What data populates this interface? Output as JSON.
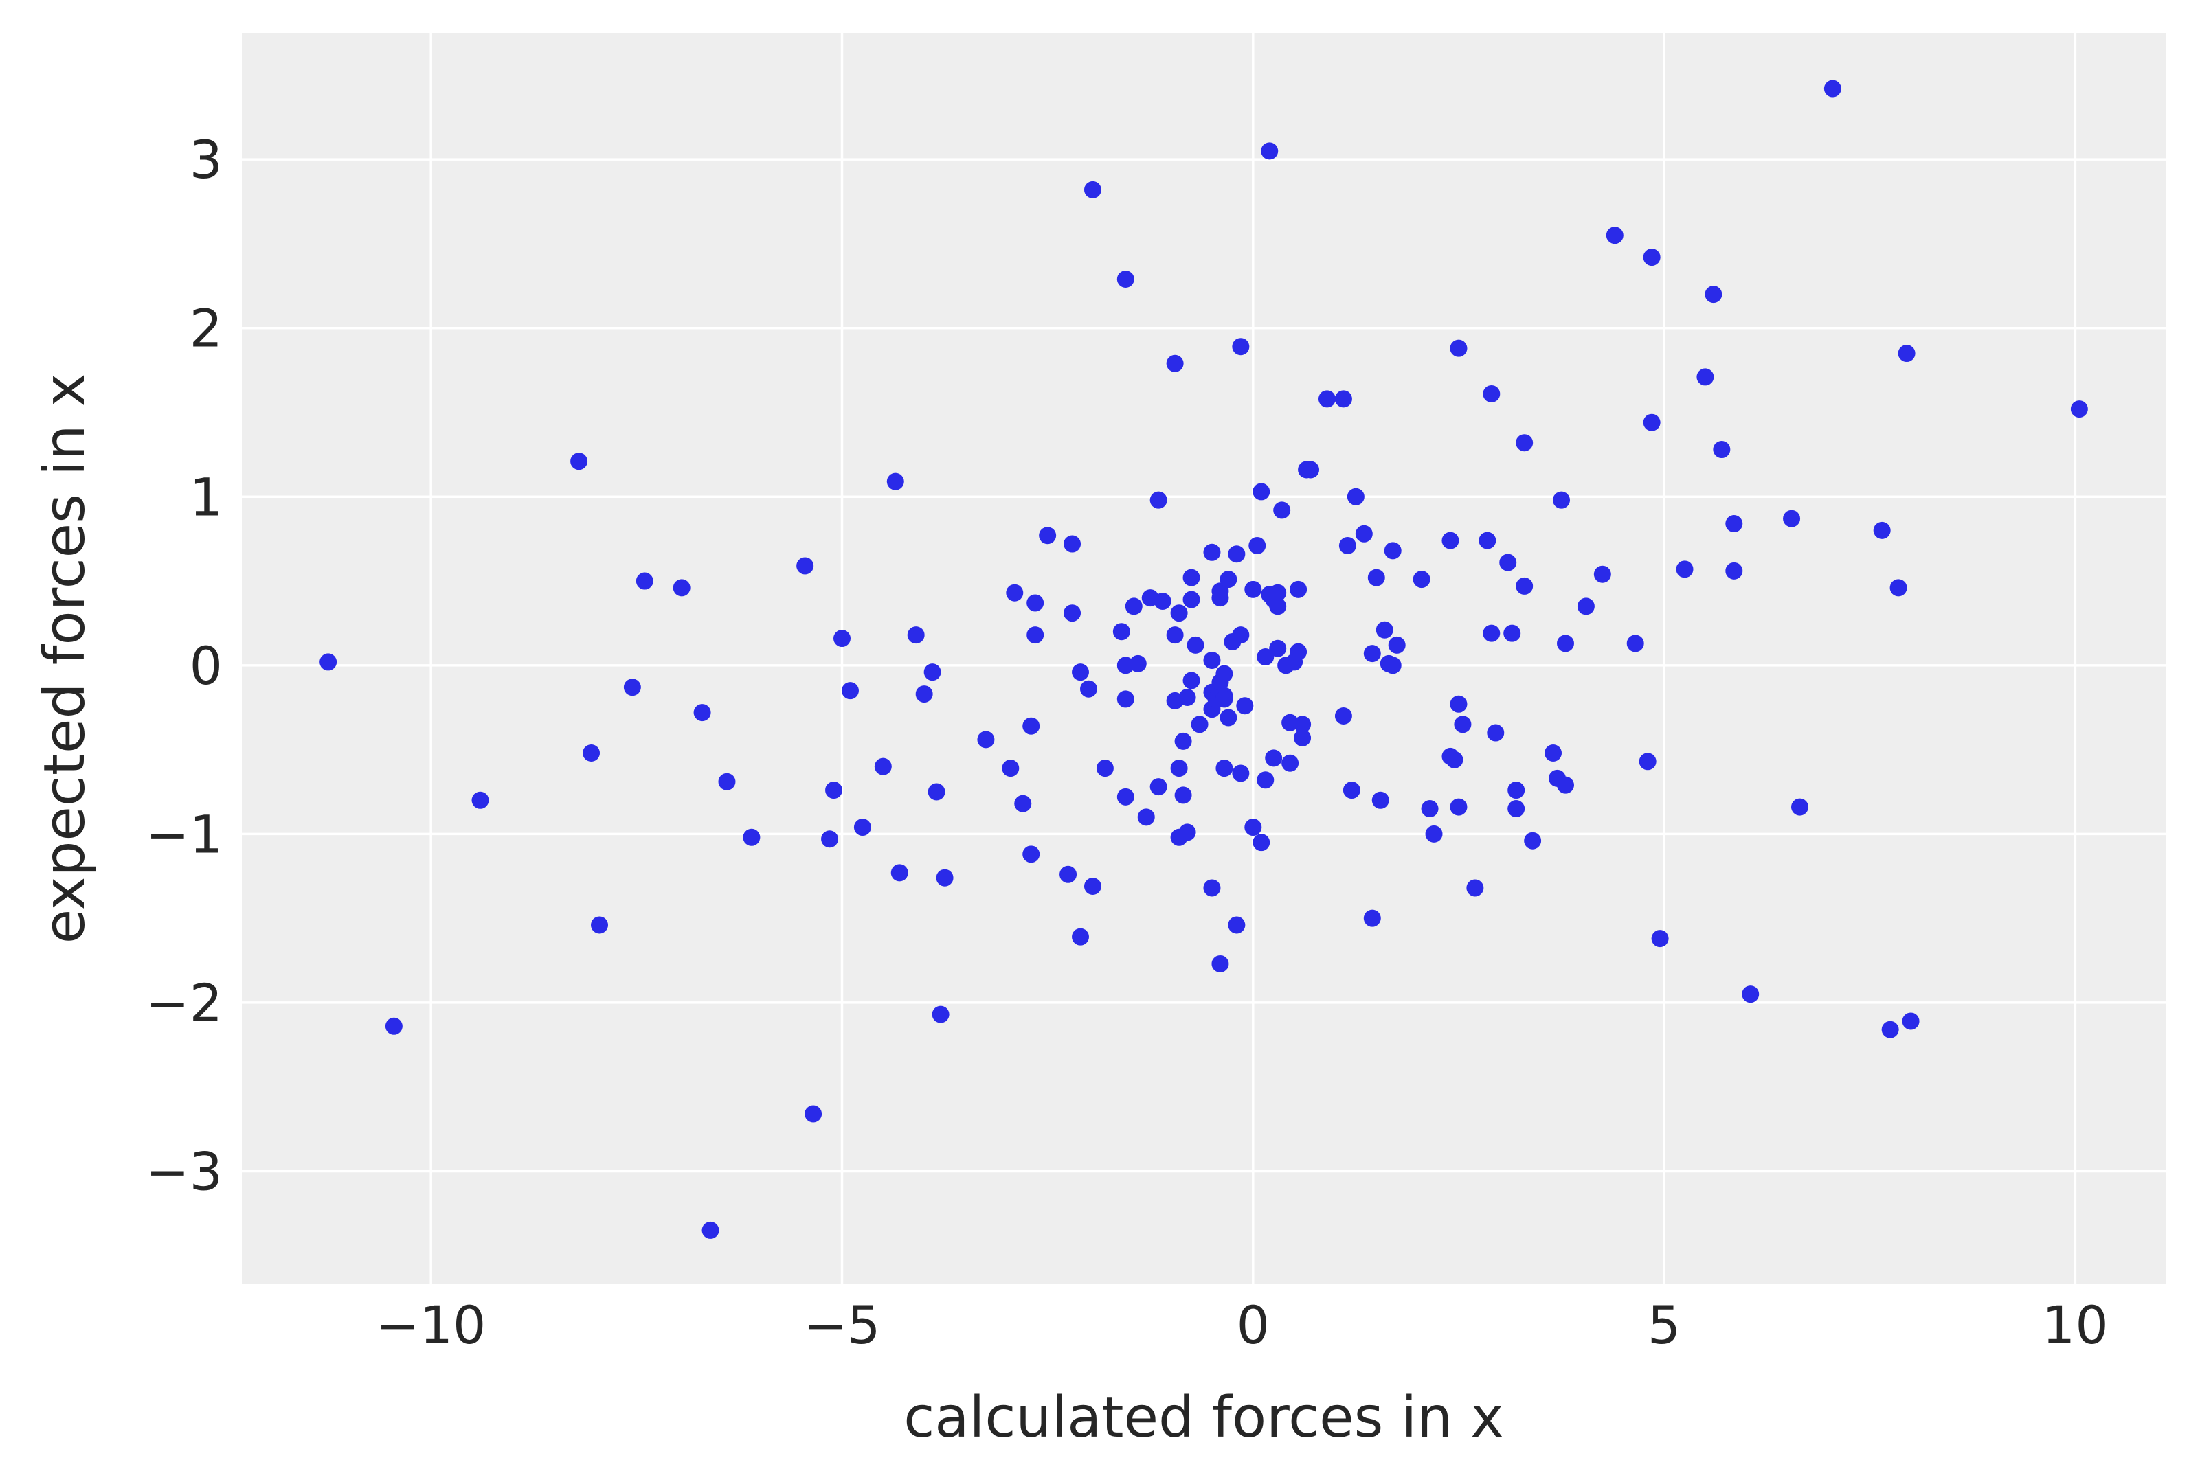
{
  "chart_data": {
    "type": "scatter",
    "title": "",
    "xlabel": "calculated forces in x",
    "ylabel": "expected forces in x",
    "xlim": [
      -12.3,
      11.1
    ],
    "ylim": [
      -3.67,
      3.75
    ],
    "xticks": [
      -10,
      -5,
      0,
      5,
      10
    ],
    "yticks": [
      -3,
      -2,
      -1,
      0,
      1,
      2,
      3
    ],
    "xtick_labels": [
      "−10",
      "−5",
      "0",
      "5",
      "10"
    ],
    "ytick_labels": [
      "−3",
      "−2",
      "−1",
      "0",
      "1",
      "2",
      "3"
    ],
    "grid": true,
    "legend": "none",
    "colors": {
      "plot_background": "#eeeeee",
      "grid": "#ffffff",
      "point": "#2a2ae8",
      "text": "#262626"
    },
    "points": [
      [
        -11.25,
        0.02
      ],
      [
        -10.45,
        -2.14
      ],
      [
        -9.4,
        -0.8
      ],
      [
        -8.2,
        1.21
      ],
      [
        -8.05,
        -0.52
      ],
      [
        -7.95,
        -1.54
      ],
      [
        -7.55,
        -0.13
      ],
      [
        -7.4,
        0.5
      ],
      [
        -6.95,
        0.46
      ],
      [
        -6.7,
        -0.28
      ],
      [
        -6.6,
        -3.35
      ],
      [
        -6.4,
        -0.69
      ],
      [
        -6.1,
        -1.02
      ],
      [
        -5.45,
        0.59
      ],
      [
        -5.35,
        -2.66
      ],
      [
        -5.15,
        -1.03
      ],
      [
        -5.1,
        -0.74
      ],
      [
        -5.0,
        0.16
      ],
      [
        -4.9,
        -0.15
      ],
      [
        -4.75,
        -0.96
      ],
      [
        -4.5,
        -0.6
      ],
      [
        -4.35,
        1.09
      ],
      [
        -4.3,
        -1.23
      ],
      [
        -4.1,
        0.18
      ],
      [
        -4.0,
        -0.17
      ],
      [
        -3.9,
        -0.04
      ],
      [
        -3.85,
        -0.75
      ],
      [
        -3.8,
        -2.07
      ],
      [
        -3.75,
        -1.26
      ],
      [
        -3.25,
        -0.44
      ],
      [
        -2.95,
        -0.61
      ],
      [
        -2.9,
        0.43
      ],
      [
        -2.8,
        -0.82
      ],
      [
        -2.7,
        -1.12
      ],
      [
        -2.7,
        -0.36
      ],
      [
        -2.65,
        0.18
      ],
      [
        -2.65,
        0.37
      ],
      [
        -2.5,
        0.77
      ],
      [
        -2.25,
        -1.24
      ],
      [
        -2.2,
        0.31
      ],
      [
        -2.2,
        0.72
      ],
      [
        -2.1,
        -0.04
      ],
      [
        -2.1,
        -1.61
      ],
      [
        -2.0,
        -0.14
      ],
      [
        -1.95,
        -1.31
      ],
      [
        -1.95,
        2.82
      ],
      [
        -1.8,
        -0.61
      ],
      [
        -1.6,
        0.2
      ],
      [
        -1.55,
        2.29
      ],
      [
        -1.55,
        0.0
      ],
      [
        -1.55,
        -0.2
      ],
      [
        -1.55,
        -0.78
      ],
      [
        -1.45,
        0.35
      ],
      [
        -1.4,
        0.01
      ],
      [
        -1.3,
        -0.9
      ],
      [
        -1.25,
        0.4
      ],
      [
        -1.15,
        0.98
      ],
      [
        -1.15,
        -0.72
      ],
      [
        -1.1,
        0.38
      ],
      [
        -0.95,
        1.79
      ],
      [
        -0.95,
        -0.21
      ],
      [
        -0.95,
        0.18
      ],
      [
        -0.9,
        0.31
      ],
      [
        -0.9,
        -0.61
      ],
      [
        -0.9,
        -1.02
      ],
      [
        -0.85,
        -0.77
      ],
      [
        -0.85,
        -0.45
      ],
      [
        -0.8,
        -0.99
      ],
      [
        -0.8,
        -0.19
      ],
      [
        -0.75,
        0.39
      ],
      [
        -0.75,
        0.52
      ],
      [
        -0.75,
        -0.09
      ],
      [
        -0.7,
        0.12
      ],
      [
        -0.65,
        -0.35
      ],
      [
        -0.5,
        -0.16
      ],
      [
        -0.5,
        -0.26
      ],
      [
        -0.5,
        0.03
      ],
      [
        -0.5,
        -1.32
      ],
      [
        -0.5,
        0.67
      ],
      [
        -0.45,
        -0.2
      ],
      [
        -0.4,
        0.44
      ],
      [
        -0.4,
        0.4
      ],
      [
        -0.4,
        -0.1
      ],
      [
        -0.4,
        -1.77
      ],
      [
        -0.35,
        -0.61
      ],
      [
        -0.35,
        -0.18
      ],
      [
        -0.35,
        -0.2
      ],
      [
        -0.35,
        -0.05
      ],
      [
        -0.3,
        0.51
      ],
      [
        -0.3,
        -0.31
      ],
      [
        -0.25,
        0.14
      ],
      [
        -0.2,
        0.66
      ],
      [
        -0.2,
        -1.54
      ],
      [
        -0.15,
        1.89
      ],
      [
        -0.15,
        -0.64
      ],
      [
        -0.15,
        0.18
      ],
      [
        -0.1,
        -0.24
      ],
      [
        0.0,
        -0.96
      ],
      [
        0.0,
        0.45
      ],
      [
        0.05,
        0.71
      ],
      [
        0.1,
        1.03
      ],
      [
        0.1,
        -1.05
      ],
      [
        0.15,
        -0.68
      ],
      [
        0.15,
        0.05
      ],
      [
        0.2,
        0.42
      ],
      [
        0.2,
        3.05
      ],
      [
        0.25,
        -0.55
      ],
      [
        0.25,
        0.39
      ],
      [
        0.3,
        0.35
      ],
      [
        0.3,
        0.1
      ],
      [
        0.3,
        0.43
      ],
      [
        0.35,
        0.92
      ],
      [
        0.4,
        0.0
      ],
      [
        0.45,
        -0.34
      ],
      [
        0.45,
        -0.58
      ],
      [
        0.5,
        0.02
      ],
      [
        0.55,
        0.45
      ],
      [
        0.55,
        0.08
      ],
      [
        0.6,
        -0.35
      ],
      [
        0.6,
        -0.43
      ],
      [
        0.65,
        1.16
      ],
      [
        0.7,
        1.16
      ],
      [
        0.9,
        1.58
      ],
      [
        1.1,
        1.58
      ],
      [
        1.1,
        -0.3
      ],
      [
        1.15,
        0.71
      ],
      [
        1.2,
        -0.74
      ],
      [
        1.25,
        1.0
      ],
      [
        1.35,
        0.78
      ],
      [
        1.45,
        0.07
      ],
      [
        1.45,
        -1.5
      ],
      [
        1.5,
        0.52
      ],
      [
        1.55,
        -0.8
      ],
      [
        1.6,
        0.21
      ],
      [
        1.65,
        0.01
      ],
      [
        1.7,
        0.68
      ],
      [
        1.7,
        0.0
      ],
      [
        1.75,
        0.12
      ],
      [
        2.05,
        0.51
      ],
      [
        2.15,
        -0.85
      ],
      [
        2.2,
        -1.0
      ],
      [
        2.4,
        -0.54
      ],
      [
        2.4,
        0.74
      ],
      [
        2.45,
        -0.56
      ],
      [
        2.5,
        -0.23
      ],
      [
        2.5,
        1.88
      ],
      [
        2.5,
        -0.84
      ],
      [
        2.55,
        -0.35
      ],
      [
        2.7,
        -1.32
      ],
      [
        2.85,
        0.74
      ],
      [
        2.9,
        1.61
      ],
      [
        2.9,
        0.19
      ],
      [
        2.95,
        -0.4
      ],
      [
        3.1,
        0.61
      ],
      [
        3.15,
        0.19
      ],
      [
        3.2,
        -0.74
      ],
      [
        3.2,
        -0.85
      ],
      [
        3.3,
        1.32
      ],
      [
        3.3,
        0.47
      ],
      [
        3.4,
        -1.04
      ],
      [
        3.65,
        -0.52
      ],
      [
        3.7,
        -0.67
      ],
      [
        3.75,
        0.98
      ],
      [
        3.8,
        -0.71
      ],
      [
        3.8,
        0.13
      ],
      [
        4.05,
        0.35
      ],
      [
        4.25,
        0.54
      ],
      [
        4.4,
        2.55
      ],
      [
        4.65,
        0.13
      ],
      [
        4.8,
        -0.57
      ],
      [
        4.85,
        1.44
      ],
      [
        4.85,
        2.42
      ],
      [
        4.95,
        -1.62
      ],
      [
        5.25,
        0.57
      ],
      [
        5.5,
        1.71
      ],
      [
        5.6,
        2.2
      ],
      [
        5.7,
        1.28
      ],
      [
        5.85,
        0.56
      ],
      [
        5.85,
        0.84
      ],
      [
        6.05,
        -1.95
      ],
      [
        6.55,
        0.87
      ],
      [
        6.65,
        -0.84
      ],
      [
        7.05,
        3.42
      ],
      [
        7.65,
        0.8
      ],
      [
        7.75,
        -2.16
      ],
      [
        7.85,
        0.46
      ],
      [
        7.95,
        1.85
      ],
      [
        8.0,
        -2.11
      ],
      [
        10.05,
        1.52
      ]
    ]
  }
}
